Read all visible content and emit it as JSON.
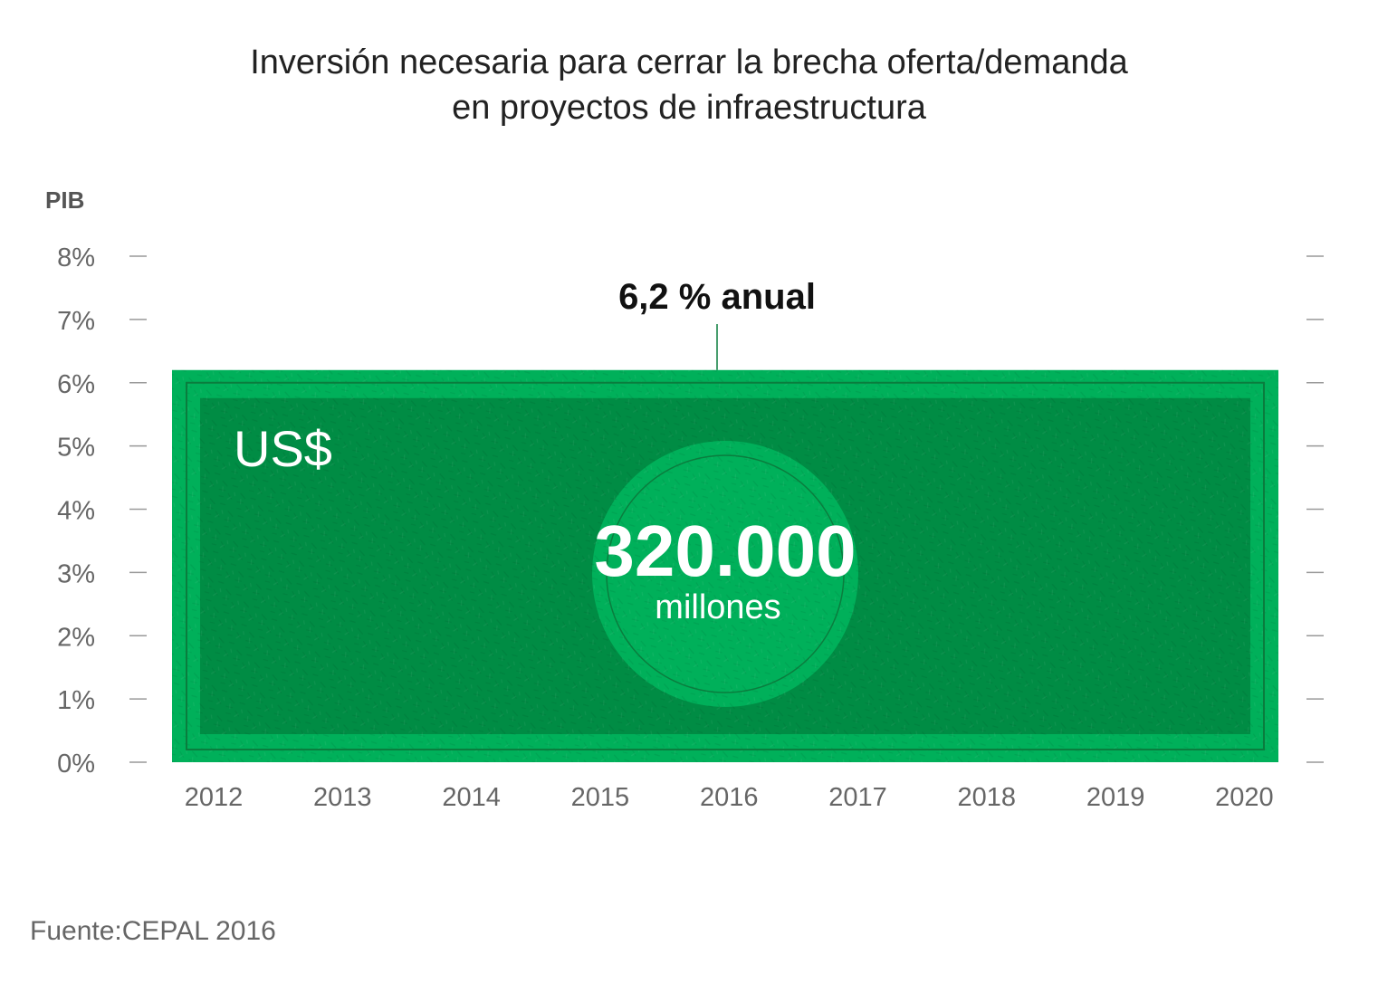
{
  "title_line1": "Inversión necesaria para cerrar la brecha oferta/demanda",
  "title_line2": "en proyectos de infraestructura",
  "source": "Fuente:CEPAL 2016",
  "colors": {
    "bill_light": "#00B05A",
    "bill_dark": "#008C44",
    "bill_border": "#0A7D3E",
    "text_white": "#FFFFFF",
    "tick": "#999999"
  },
  "chart_data": {
    "type": "area",
    "ylabel": "PIB",
    "x": [
      "2012",
      "2013",
      "2014",
      "2015",
      "2016",
      "2017",
      "2018",
      "2019",
      "2020"
    ],
    "y_ticks": [
      "0%",
      "1%",
      "2%",
      "3%",
      "4%",
      "5%",
      "6%",
      "7%",
      "8%"
    ],
    "ylim": [
      0,
      8
    ],
    "series": [
      {
        "values": [
          6.2,
          6.2,
          6.2,
          6.2,
          6.2,
          6.2,
          6.2,
          6.2,
          6.2
        ]
      }
    ],
    "annotation": "6,2 % anual",
    "currency_label": "US$",
    "amount": "320.000",
    "amount_unit": "millones",
    "grid": false
  }
}
